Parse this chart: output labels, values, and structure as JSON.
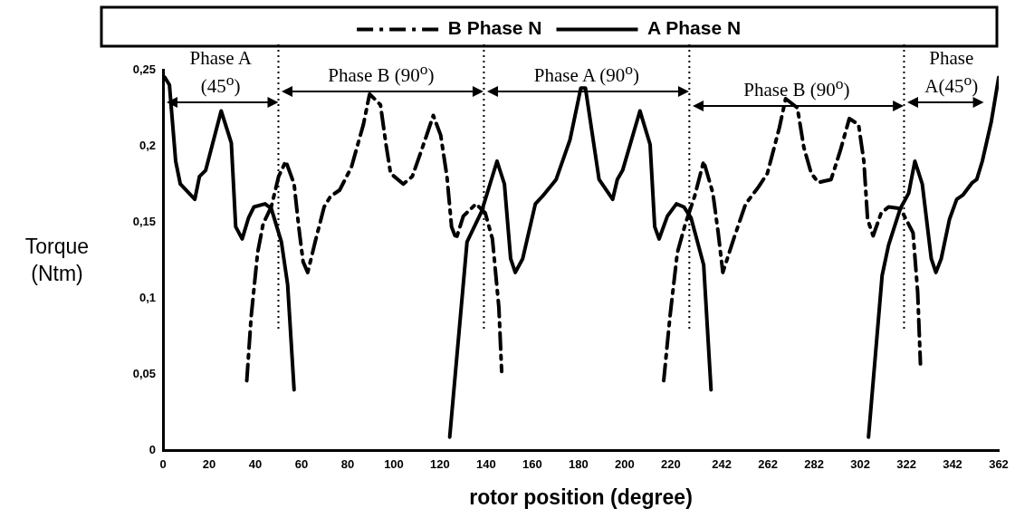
{
  "chart_data": {
    "type": "line",
    "xlabel": "rotor position (degree)",
    "ylabel": "Torque (Ntm)",
    "xlim": [
      0,
      362
    ],
    "xticks": [
      0,
      20,
      40,
      60,
      80,
      100,
      120,
      140,
      160,
      180,
      200,
      220,
      242,
      262,
      282,
      302,
      322,
      342,
      362
    ],
    "ylim": [
      0,
      0.25
    ],
    "yticks": [
      0,
      {
        "value": 0.05,
        "label": "0,05"
      },
      {
        "value": 0.1,
        "label": "0,1"
      },
      {
        "value": 0.15,
        "label": "0,15"
      },
      {
        "value": 0.2,
        "label": "0,2"
      },
      {
        "value": 0.25,
        "label": "0,25"
      }
    ],
    "grid": false,
    "legend": "top",
    "marker": "none",
    "series": [
      {
        "name": "B Phase N",
        "color": "#000000",
        "line_style": "dashed",
        "x": [
          36.3,
          38.2,
          41,
          43.4,
          46.9,
          50.1,
          53.2,
          56.8,
          58.8,
          60.7,
          62.7,
          65.9,
          69.8,
          72.6,
          76.5,
          81.6,
          86.8,
          89.5,
          94.2,
          96.6,
          98.6,
          104.1,
          108,
          112.4,
          117.1,
          120.3,
          123,
          125,
          127,
          130.1,
          135.6,
          139.6,
          142.7,
          145.5,
          146.7,
          180,
          216.9,
          219.6,
          222.8,
          226.3,
          230.3,
          234.2,
          238.2,
          240.5,
          242.5,
          247.2,
          252.4,
          257.9,
          261.8,
          267,
          269.7,
          274.8,
          277.6,
          280.8,
          283.9,
          289.4,
          293.4,
          297.3,
          301.3,
          303.6,
          305.2,
          307.6,
          311.1,
          314.3,
          319.4,
          324.9,
          326.9,
          328.1
        ],
        "values": [
          0.046,
          0.088,
          0.13,
          0.149,
          0.16,
          0.18,
          0.19,
          0.175,
          0.147,
          0.124,
          0.117,
          0.137,
          0.16,
          0.167,
          0.171,
          0.186,
          0.214,
          0.234,
          0.227,
          0.201,
          0.182,
          0.175,
          0.18,
          0.199,
          0.22,
          0.207,
          0.18,
          0.147,
          0.139,
          0.154,
          0.162,
          0.156,
          0.139,
          0.094,
          0.052,
          null,
          0.046,
          0.088,
          0.13,
          0.149,
          0.167,
          0.19,
          0.169,
          0.143,
          0.117,
          0.139,
          0.162,
          0.173,
          0.182,
          0.212,
          0.231,
          0.225,
          0.199,
          0.182,
          0.176,
          0.178,
          0.197,
          0.218,
          0.214,
          0.19,
          0.152,
          0.141,
          0.156,
          0.16,
          0.159,
          0.143,
          0.104,
          0.057
        ]
      },
      {
        "name": "A Phase N",
        "color": "#000000",
        "line_style": "solid",
        "x": [
          0.8,
          2.8,
          5.5,
          7.5,
          13.8,
          15.8,
          18.5,
          25.2,
          29.6,
          31.5,
          34.3,
          37.1,
          39.4,
          44.2,
          46.9,
          51.3,
          54,
          56.8,
          90,
          124.2,
          131.7,
          138,
          144.7,
          147.9,
          150.6,
          152.6,
          155.8,
          161.3,
          164.4,
          170.3,
          176.3,
          181,
          183,
          188.9,
          194.8,
          196.8,
          199.1,
          206.6,
          211,
          213,
          214.9,
          218.5,
          222.4,
          225.6,
          228.7,
          234.2,
          237.4,
          270,
          305.6,
          311.5,
          314.3,
          319.4,
          323,
          325.7,
          328.9,
          332.8,
          334.8,
          337.1,
          340.7,
          343.8,
          346.6,
          350.6,
          352.5,
          354.9,
          358.8,
          362
        ],
        "values": [
          0.245,
          0.24,
          0.19,
          0.175,
          0.165,
          0.18,
          0.184,
          0.223,
          0.202,
          0.147,
          0.139,
          0.153,
          0.16,
          0.162,
          0.159,
          0.137,
          0.109,
          0.04,
          null,
          0.009,
          0.137,
          0.157,
          0.19,
          0.175,
          0.126,
          0.117,
          0.126,
          0.162,
          0.167,
          0.178,
          0.204,
          0.238,
          0.238,
          0.178,
          0.165,
          0.178,
          0.184,
          0.223,
          0.201,
          0.147,
          0.139,
          0.154,
          0.162,
          0.16,
          0.153,
          0.122,
          0.04,
          null,
          0.009,
          0.115,
          0.135,
          0.159,
          0.169,
          0.19,
          0.175,
          0.126,
          0.117,
          0.126,
          0.152,
          0.165,
          0.168,
          0.176,
          0.178,
          0.19,
          0.216,
          0.245
        ]
      }
    ],
    "ref_lines": [
      {
        "axis": "x",
        "value": 50,
        "line_style": "dotted"
      },
      {
        "axis": "x",
        "value": 139,
        "line_style": "dotted"
      },
      {
        "axis": "x",
        "value": 228,
        "line_style": "dotted"
      },
      {
        "axis": "x",
        "value": 321,
        "line_style": "dotted"
      }
    ],
    "annotations": [
      "Phase A (45$^{o}$)",
      "Phase B (90$^{o}$)",
      "Phase A (90$^{o}$)",
      "Phase B (90$^{o}$)",
      "Phase A(45$^{o}$)"
    ]
  }
}
